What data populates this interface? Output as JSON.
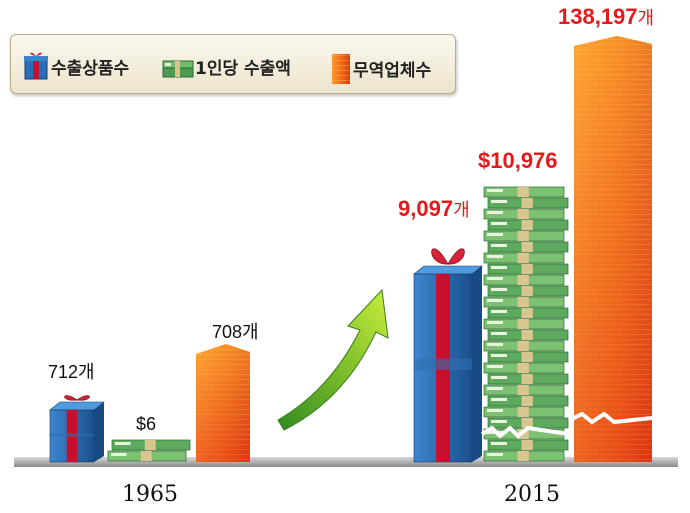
{
  "chart_data": {
    "type": "bar",
    "categories": [
      "1965",
      "2015"
    ],
    "series": [
      {
        "name": "수출상품수",
        "values": [
          712,
          9097
        ],
        "labels": [
          "712개",
          "9,097개"
        ],
        "icon": "gift-box-icon",
        "color": "#2a6fb8"
      },
      {
        "name": "1인당 수출액",
        "values": [
          6,
          10976
        ],
        "labels": [
          "$6",
          "$10,976"
        ],
        "icon": "money-stack-icon",
        "color": "#3e9a4a"
      },
      {
        "name": "무역업체수",
        "values": [
          708,
          138197
        ],
        "labels": [
          "708개",
          "138,197개"
        ],
        "icon": "building-icon",
        "color": "#f06818"
      }
    ],
    "legend": "top-left",
    "grid": false,
    "axis_break": "2015 series"
  },
  "labels": {
    "unit": "개",
    "export_items_1965_num": "712",
    "export_items_2015_num": "9,097",
    "per_capita_1965": "$6",
    "per_capita_2015": "$10,976",
    "firms_1965_num": "708",
    "firms_2015_num": "138,197"
  },
  "colors": {
    "highlight": "#e41a1a",
    "gift_blue": "#2a6fb8",
    "ribbon_red": "#c8102e",
    "money_green": "#3e9a4a",
    "building_orange": "#f06818",
    "arrow_green": "#5fb52e"
  }
}
